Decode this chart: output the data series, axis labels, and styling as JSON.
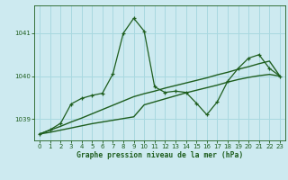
{
  "xlabel": "Graphe pression niveau de la mer (hPa)",
  "background_color": "#cdeaf0",
  "grid_color": "#a8d8e0",
  "line_color": "#1e5e1e",
  "x_values": [
    0,
    1,
    2,
    3,
    4,
    5,
    6,
    7,
    8,
    9,
    10,
    11,
    12,
    13,
    14,
    15,
    16,
    17,
    18,
    19,
    20,
    21,
    22,
    23
  ],
  "y_main": [
    1038.65,
    1038.75,
    1038.9,
    1039.35,
    1039.48,
    1039.55,
    1039.6,
    1040.05,
    1041.0,
    1041.35,
    1041.05,
    1039.75,
    1039.62,
    1039.65,
    1039.62,
    1039.37,
    1039.1,
    1039.4,
    1039.88,
    1040.18,
    1040.42,
    1040.5,
    1040.18,
    1040.0
  ],
  "ylim": [
    1038.5,
    1041.65
  ],
  "yticks": [
    1039,
    1040,
    1041
  ],
  "xticks": [
    0,
    1,
    2,
    3,
    4,
    5,
    6,
    7,
    8,
    9,
    10,
    11,
    12,
    13,
    14,
    15,
    16,
    17,
    18,
    19,
    20,
    21,
    22,
    23
  ],
  "figsize": [
    3.2,
    2.0
  ],
  "dpi": 100
}
